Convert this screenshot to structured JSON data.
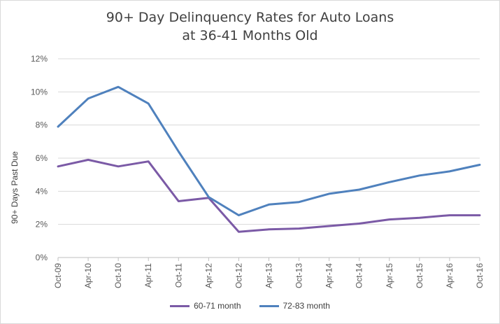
{
  "chart_data": {
    "type": "line",
    "title_line1": "90+ Day Delinquency Rates for Auto Loans",
    "title_line2": "at 36-41 Months Old",
    "xlabel": "",
    "ylabel": "90+ Days Past Due",
    "categories": [
      "Oct-09",
      "Apr-10",
      "Oct-10",
      "Apr-11",
      "Oct-11",
      "Apr-12",
      "Oct-12",
      "Apr-13",
      "Oct-13",
      "Apr-14",
      "Oct-14",
      "Apr-15",
      "Oct-15",
      "Apr-16",
      "Oct-16"
    ],
    "ylim": [
      0,
      12
    ],
    "yticks": [
      "0%",
      "2%",
      "4%",
      "6%",
      "8%",
      "10%",
      "12%"
    ],
    "grid": true,
    "legend_position": "bottom",
    "series": [
      {
        "name": "60-71 month",
        "color": "#7b5aa6",
        "values": [
          5.5,
          5.9,
          5.5,
          5.8,
          3.4,
          3.6,
          1.55,
          1.7,
          1.75,
          1.9,
          2.05,
          2.3,
          2.4,
          2.55,
          2.55
        ]
      },
      {
        "name": "72-83 month",
        "color": "#4f81bd",
        "values": [
          7.9,
          9.6,
          10.3,
          9.3,
          6.4,
          3.65,
          2.55,
          3.2,
          3.35,
          3.85,
          4.1,
          4.55,
          4.95,
          5.2,
          5.6
        ]
      }
    ]
  }
}
